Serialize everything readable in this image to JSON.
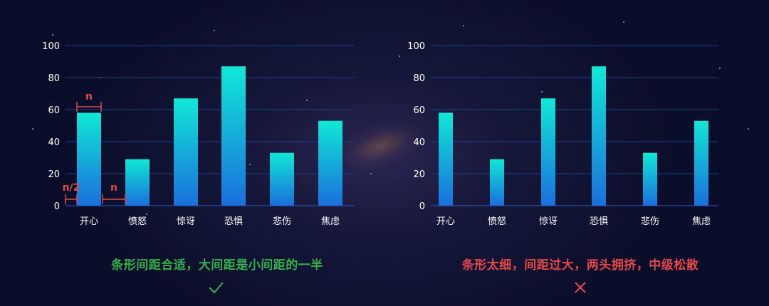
{
  "colors": {
    "bar_top": "#10e8d6",
    "bar_bottom": "#1a6fdc",
    "grid": "#1f3f8a",
    "axis_text": "#ffffff",
    "annotation": "#e5484a",
    "good": "#35b14a",
    "bad": "#e5484a"
  },
  "annotations": {
    "bar_width_label": "n",
    "gap_label": "n",
    "edge_gap_label": "n/2"
  },
  "captions": {
    "good": "条形间距合适，大间距是小间距的一半",
    "bad": "条形太细，间距过大，两头拥挤，中级松散"
  },
  "icons": {
    "good": "check-icon",
    "bad": "cross-icon"
  },
  "chart_data": [
    {
      "type": "bar",
      "categories": [
        "开心",
        "愤怒",
        "惊讶",
        "恐惧",
        "悲伤",
        "焦虑"
      ],
      "values": [
        58,
        29,
        67,
        87,
        33,
        53
      ],
      "ylim": [
        0,
        100
      ],
      "yticks": [
        0,
        20,
        40,
        60,
        80,
        100
      ],
      "grid": true
    },
    {
      "type": "bar",
      "categories": [
        "开心",
        "愤怒",
        "惊讶",
        "恐惧",
        "悲伤",
        "焦虑"
      ],
      "values": [
        58,
        29,
        67,
        87,
        33,
        53
      ],
      "ylim": [
        0,
        100
      ],
      "yticks": [
        0,
        20,
        40,
        60,
        80,
        100
      ],
      "grid": true
    }
  ]
}
